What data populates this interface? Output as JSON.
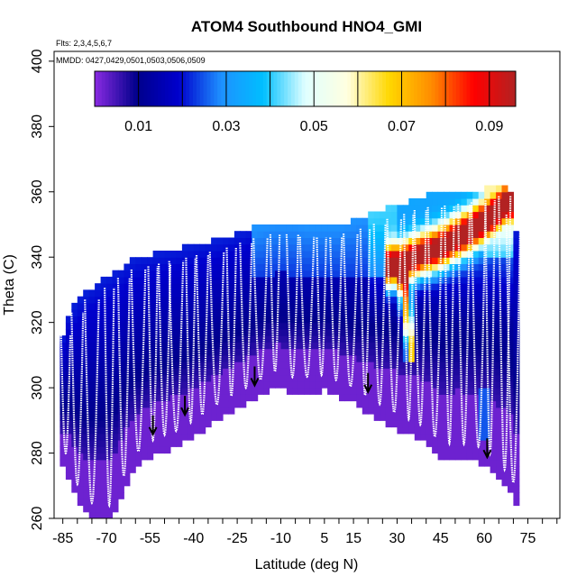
{
  "chart_data": {
    "type": "heatmap",
    "title": "ATOM4 Southbound HNO4_GMI",
    "flights_note": "Flts: 2,3,4,5,6,7",
    "dates_note": "MMDD: 0427,0429,0501,0503,0506,0509",
    "xlabel": "Latitude (deg N)",
    "ylabel": "Theta (C)",
    "xlim": [
      -88,
      86
    ],
    "ylim": [
      260,
      403
    ],
    "x_tick_values": [
      -85,
      -80,
      -75,
      -70,
      -65,
      -60,
      -55,
      -50,
      -45,
      -40,
      -35,
      -30,
      -25,
      -20,
      -15,
      -10,
      -5,
      0,
      5,
      10,
      15,
      20,
      25,
      30,
      35,
      40,
      45,
      50,
      55,
      60,
      65,
      70,
      75,
      80,
      85
    ],
    "x_tick_labels": [
      "-85",
      "-70",
      "-55",
      "-40",
      "-25",
      "-10",
      "5",
      "15",
      "30",
      "45",
      "60",
      "75"
    ],
    "y_ticks": [
      260,
      280,
      300,
      320,
      340,
      360,
      380,
      400
    ],
    "y_tick_labels": [
      "260",
      "280",
      "300",
      "320",
      "340",
      "360",
      "380",
      "400"
    ],
    "colorbar": {
      "range": [
        0,
        0.096
      ],
      "labels": [
        "0.01",
        "0.03",
        "0.05",
        "0.07",
        "0.09"
      ],
      "label_values": [
        0.01,
        0.03,
        0.05,
        0.07,
        0.09
      ],
      "divisions": [
        0.01,
        0.02,
        0.03,
        0.04,
        0.05,
        0.06,
        0.07,
        0.08,
        0.09
      ],
      "colors": [
        "#8a2be2",
        "#00008b",
        "#0000cd",
        "#1e90ff",
        "#00bfff",
        "#e0ffff",
        "#ffffe0",
        "#ffd700",
        "#ff8c00",
        "#ff0000",
        "#b22222"
      ]
    },
    "field": {
      "lat_range": [
        -86,
        72
      ],
      "top_boundary": [
        [
          -86,
          313
        ],
        [
          -83,
          322
        ],
        [
          -80,
          326
        ],
        [
          -75,
          330
        ],
        [
          -70,
          333
        ],
        [
          -65,
          336
        ],
        [
          -60,
          339
        ],
        [
          -50,
          341
        ],
        [
          -40,
          343
        ],
        [
          -30,
          345
        ],
        [
          -20,
          348
        ],
        [
          -12,
          350
        ],
        [
          -5,
          350
        ],
        [
          0,
          349
        ],
        [
          10,
          349
        ],
        [
          20,
          352
        ],
        [
          30,
          355
        ],
        [
          40,
          358
        ],
        [
          50,
          359
        ],
        [
          60,
          360
        ],
        [
          65,
          361
        ],
        [
          68,
          362
        ],
        [
          70,
          356
        ],
        [
          72,
          340
        ]
      ],
      "bottom_boundary": [
        [
          -86,
          278
        ],
        [
          -84,
          276
        ],
        [
          -82,
          270
        ],
        [
          -78,
          263
        ],
        [
          -74,
          260
        ],
        [
          -68,
          260
        ],
        [
          -66,
          264
        ],
        [
          -62,
          274
        ],
        [
          -56,
          279
        ],
        [
          -52,
          281
        ],
        [
          -45,
          283
        ],
        [
          -40,
          286
        ],
        [
          -30,
          292
        ],
        [
          -20,
          297
        ],
        [
          -12,
          301
        ],
        [
          -5,
          299
        ],
        [
          5,
          300
        ],
        [
          15,
          296
        ],
        [
          22,
          292
        ],
        [
          30,
          288
        ],
        [
          40,
          284
        ],
        [
          45,
          279
        ],
        [
          52,
          279
        ],
        [
          58,
          278
        ],
        [
          62,
          276
        ],
        [
          68,
          270
        ],
        [
          72,
          264
        ]
      ],
      "plume": [
        [
          28,
          337
        ],
        [
          36,
          340
        ],
        [
          45,
          343
        ],
        [
          55,
          348
        ],
        [
          63,
          353
        ],
        [
          68,
          357
        ]
      ],
      "plume_peak": 0.08,
      "descending_plume": [
        [
          32,
          334
        ],
        [
          33,
          326
        ],
        [
          34,
          318
        ],
        [
          35,
          312
        ]
      ]
    },
    "flight_lat_centers": [
      -84,
      -80,
      -75,
      -69,
      -64,
      -59,
      -54,
      -50,
      -46,
      -41,
      -37,
      -32,
      -27,
      -22,
      -17,
      -12,
      -6,
      -1,
      4,
      9,
      14,
      19,
      24,
      29,
      34,
      38,
      43,
      48,
      53,
      58,
      62,
      67,
      70
    ],
    "arrows": [
      [
        -54,
        286
      ],
      [
        -43,
        292
      ],
      [
        -19,
        301
      ],
      [
        20,
        299
      ],
      [
        61,
        279
      ]
    ]
  }
}
